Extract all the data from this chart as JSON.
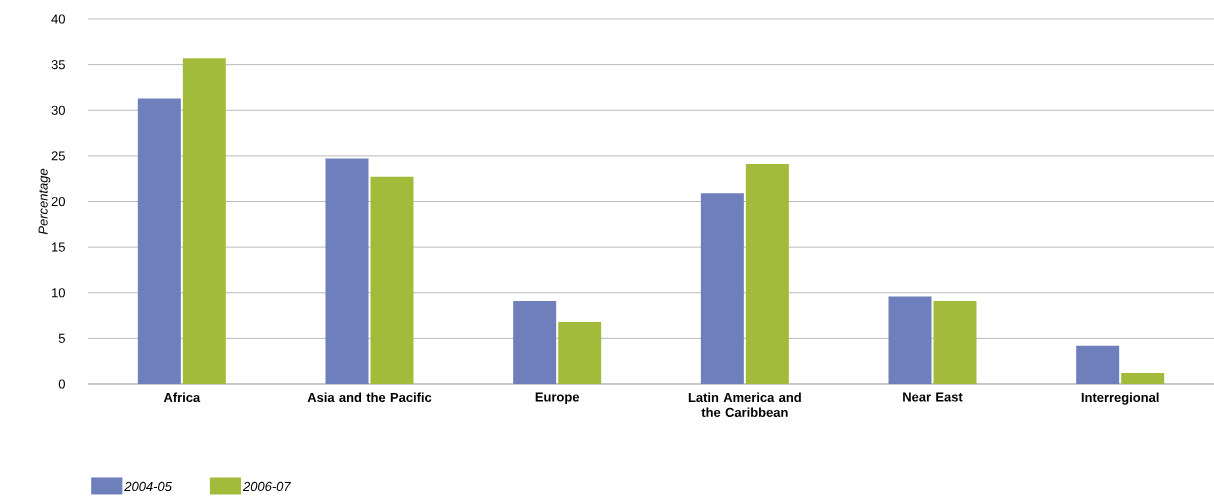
{
  "chart_data": {
    "type": "bar",
    "ylabel": "Percentage",
    "categories": [
      "Africa",
      "Asia and the Pacific",
      "Europe",
      "Latin America and the Caribbean",
      "Near East",
      "Interregional"
    ],
    "series": [
      {
        "name": "2004-05",
        "color": "#6e7fbc",
        "values": [
          31.3,
          24.7,
          9.1,
          20.9,
          9.6,
          4.2
        ]
      },
      {
        "name": "2006-07",
        "color": "#a2bb3a",
        "values": [
          35.7,
          22.7,
          6.8,
          24.1,
          9.1,
          1.2
        ]
      }
    ],
    "ylim": [
      0,
      40
    ],
    "yticks": [
      0,
      5,
      10,
      15,
      20,
      25,
      30,
      35,
      40
    ],
    "grid": "y",
    "legend": "bottom left"
  }
}
